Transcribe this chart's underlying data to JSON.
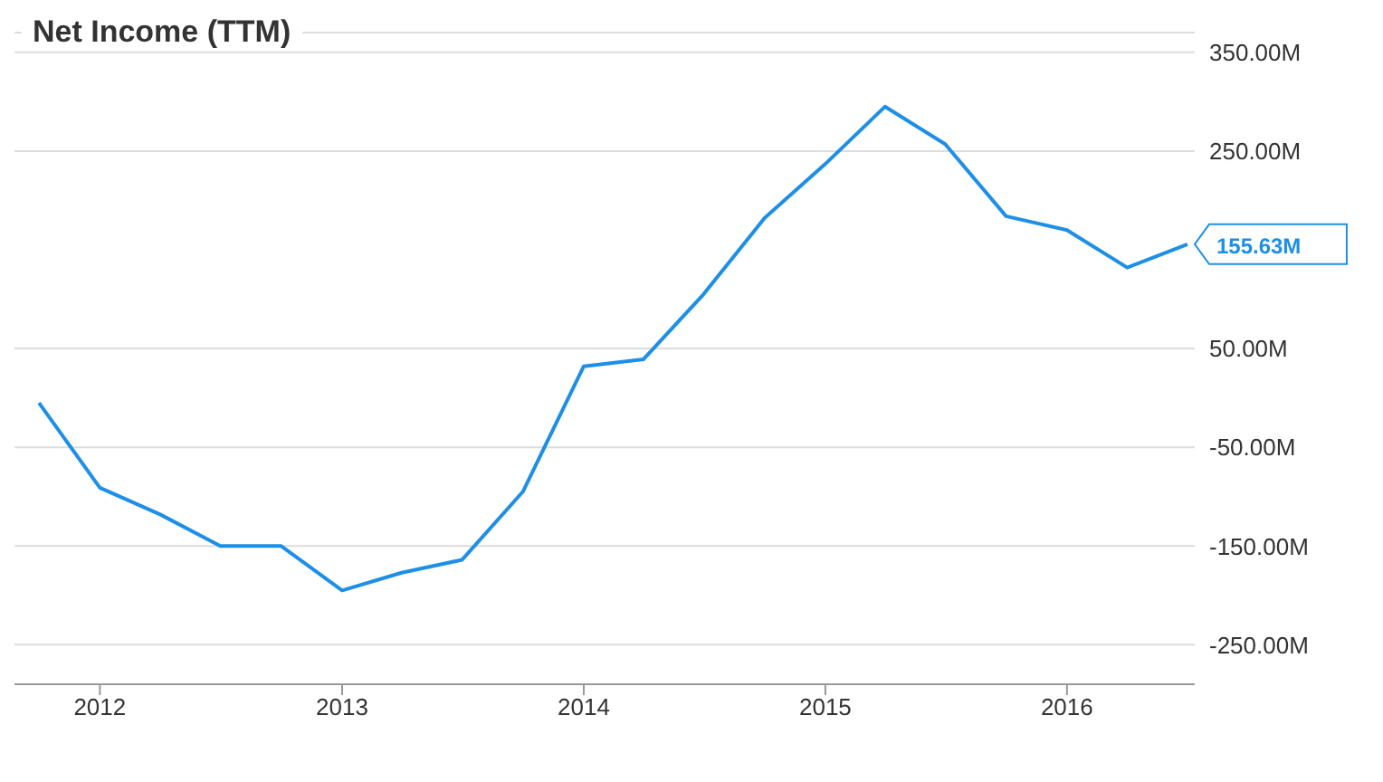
{
  "chart_data": {
    "type": "line",
    "title": "Net Income (TTM)",
    "x": [
      "2011-10-01",
      "2012-01-01",
      "2012-04-01",
      "2012-07-01",
      "2012-10-01",
      "2013-01-01",
      "2013-04-01",
      "2013-07-01",
      "2013-10-01",
      "2014-01-01",
      "2014-04-01",
      "2014-07-01",
      "2014-10-01",
      "2015-01-01",
      "2015-04-01",
      "2015-07-01",
      "2015-10-01",
      "2016-01-01",
      "2016-04-01",
      "2016-07-01"
    ],
    "series": [
      {
        "color": "#1e8fe6",
        "values": [
          -5,
          -91,
          -118,
          -150,
          -150,
          -195,
          -177,
          -164,
          -95,
          32,
          39,
          105,
          182,
          237,
          295,
          257,
          184,
          170,
          132,
          155.63
        ]
      }
    ],
    "xlim": [
      "2011-08-25",
      "2016-07-12"
    ],
    "xticks": [
      {
        "value": "2012-01-01",
        "label": "2012"
      },
      {
        "value": "2013-01-01",
        "label": "2013"
      },
      {
        "value": "2014-01-01",
        "label": "2014"
      },
      {
        "value": "2015-01-01",
        "label": "2015"
      },
      {
        "value": "2016-01-01",
        "label": "2016"
      }
    ],
    "ylim": [
      -290,
      370
    ],
    "yticks": [
      {
        "value": -250,
        "label": "-250.00M"
      },
      {
        "value": -150,
        "label": "-150.00M"
      },
      {
        "value": -50,
        "label": "-50.00M"
      },
      {
        "value": 50,
        "label": "50.00M"
      },
      {
        "value": 250,
        "label": "250.00M"
      },
      {
        "value": 350,
        "label": "350.00M"
      }
    ],
    "annotations": [
      {
        "text": "155.63M",
        "x": "2016-07-01",
        "y": 155.63
      }
    ],
    "grid": "y",
    "marker": "none",
    "line_style": "solid"
  }
}
